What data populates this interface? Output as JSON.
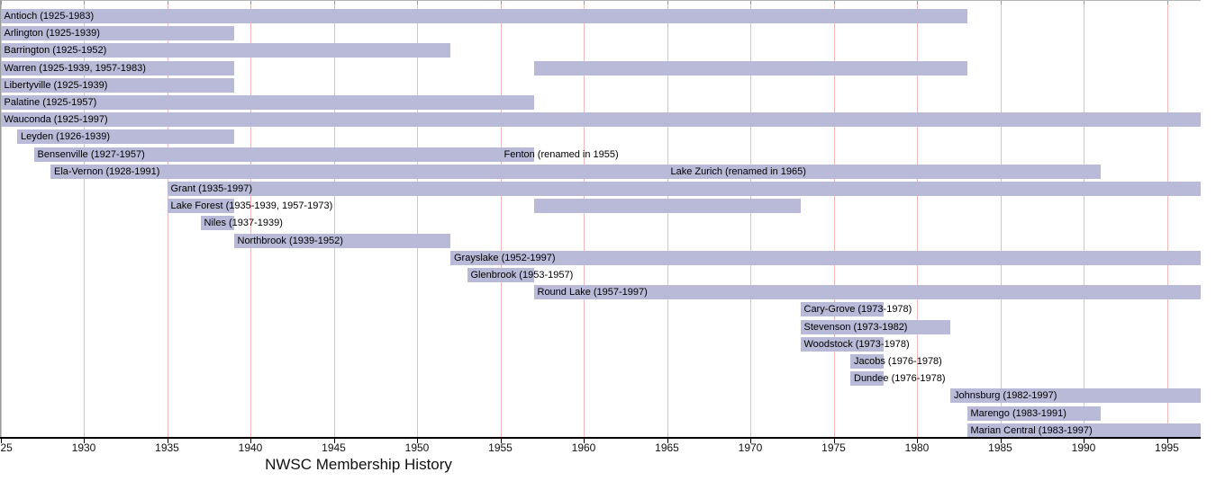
{
  "title": "NWSC Membership History",
  "colors": {
    "bar": "#b9b9d8",
    "gridline": "#f2b8b8",
    "top_axis": "#b5b5b5",
    "top_tick": "#9a9a9a",
    "left_axis": "#9a9a9a",
    "bottom_axis": "#000000",
    "text": "#000000"
  },
  "chart_data": {
    "type": "bar",
    "subtype": "gantt-timeline",
    "title": "NWSC Membership History",
    "xlabel": "",
    "ylabel": "",
    "xlim": [
      1925,
      1997
    ],
    "tick_years": [
      1925,
      1930,
      1935,
      1940,
      1945,
      1950,
      1955,
      1960,
      1965,
      1970,
      1975,
      1980,
      1985,
      1990,
      1995
    ],
    "tick_labels": [
      "1925",
      "1930",
      "1935",
      "1940",
      "1945",
      "1950",
      "1955",
      "1960",
      "1965",
      "1970",
      "1975",
      "1980",
      "1985",
      "1990",
      "1995"
    ],
    "grid": "vertical",
    "legend": "none",
    "rows": [
      {
        "name": "Antioch",
        "label": "Antioch (1925-1983)",
        "segments": [
          [
            1925,
            1983
          ]
        ]
      },
      {
        "name": "Arlington",
        "label": "Arlington (1925-1939)",
        "segments": [
          [
            1925,
            1939
          ]
        ]
      },
      {
        "name": "Barrington",
        "label": "Barrington (1925-1952)",
        "segments": [
          [
            1925,
            1952
          ]
        ]
      },
      {
        "name": "Warren",
        "label": "Warren (1925-1939, 1957-1983)",
        "segments": [
          [
            1925,
            1939
          ],
          [
            1957,
            1983
          ]
        ]
      },
      {
        "name": "Libertyville",
        "label": "Libertyville (1925-1939)",
        "segments": [
          [
            1925,
            1939
          ]
        ]
      },
      {
        "name": "Palatine",
        "label": "Palatine (1925-1957)",
        "segments": [
          [
            1925,
            1957
          ]
        ]
      },
      {
        "name": "Wauconda",
        "label": "Wauconda (1925-1997)",
        "segments": [
          [
            1925,
            1997
          ]
        ]
      },
      {
        "name": "Leyden",
        "label": "Leyden (1926-1939)",
        "segments": [
          [
            1926,
            1939
          ]
        ]
      },
      {
        "name": "Bensenville",
        "label": "Bensenville (1927-1957)",
        "segments": [
          [
            1927,
            1957
          ]
        ],
        "annotation": {
          "text": "Fenton (renamed in 1955)",
          "at_year": 1955
        }
      },
      {
        "name": "Ela-Vernon",
        "label": "Ela-Vernon (1928-1991)",
        "segments": [
          [
            1928,
            1991
          ]
        ],
        "annotation": {
          "text": "Lake Zurich (renamed in 1965)",
          "at_year": 1965
        }
      },
      {
        "name": "Grant",
        "label": "Grant (1935-1997)",
        "segments": [
          [
            1935,
            1997
          ]
        ]
      },
      {
        "name": "Lake Forest",
        "label": "Lake Forest (1935-1939, 1957-1973)",
        "segments": [
          [
            1935,
            1939
          ],
          [
            1957,
            1973
          ]
        ]
      },
      {
        "name": "Niles",
        "label": "Niles (1937-1939)",
        "segments": [
          [
            1937,
            1939
          ]
        ]
      },
      {
        "name": "Northbrook",
        "label": "Northbrook (1939-1952)",
        "segments": [
          [
            1939,
            1952
          ]
        ]
      },
      {
        "name": "Grayslake",
        "label": "Grayslake (1952-1997)",
        "segments": [
          [
            1952,
            1997
          ]
        ]
      },
      {
        "name": "Glenbrook",
        "label": "Glenbrook (1953-1957)",
        "segments": [
          [
            1953,
            1957
          ]
        ]
      },
      {
        "name": "Round Lake",
        "label": "Round Lake (1957-1997)",
        "segments": [
          [
            1957,
            1997
          ]
        ]
      },
      {
        "name": "Cary-Grove",
        "label": "Cary-Grove (1973-1978)",
        "segments": [
          [
            1973,
            1978
          ]
        ]
      },
      {
        "name": "Stevenson",
        "label": "Stevenson (1973-1982)",
        "segments": [
          [
            1973,
            1982
          ]
        ]
      },
      {
        "name": "Woodstock",
        "label": "Woodstock (1973-1978)",
        "segments": [
          [
            1973,
            1978
          ]
        ]
      },
      {
        "name": "Jacobs",
        "label": "Jacobs (1976-1978)",
        "segments": [
          [
            1976,
            1978
          ]
        ]
      },
      {
        "name": "Dundee",
        "label": "Dundee (1976-1978)",
        "segments": [
          [
            1976,
            1978
          ]
        ]
      },
      {
        "name": "Johnsburg",
        "label": "Johnsburg (1982-1997)",
        "segments": [
          [
            1982,
            1997
          ]
        ]
      },
      {
        "name": "Marengo",
        "label": "Marengo (1983-1991)",
        "segments": [
          [
            1983,
            1991
          ]
        ]
      },
      {
        "name": "Marian Central",
        "label": "Marian Central (1983-1997)",
        "segments": [
          [
            1983,
            1997
          ]
        ]
      }
    ]
  }
}
